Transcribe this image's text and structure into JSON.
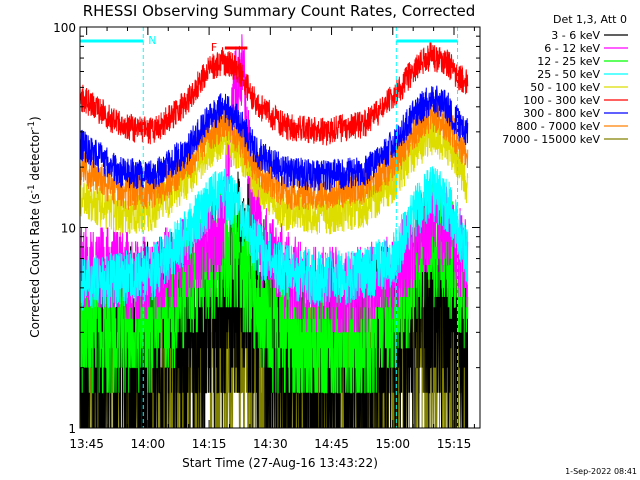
{
  "chart_data": {
    "type": "line",
    "title": "RHESSI Observing Summary Count Rates, Corrected",
    "xlabel": "Start Time (27-Aug-16 13:43:22)",
    "ylabel_main": "Corrected Count Rate (s",
    "ylabel_sup1": "-1",
    "ylabel_mid": " detector",
    "ylabel_sup2": "-1",
    "ylabel_end": ")",
    "y_scale": "log",
    "ylim": [
      1,
      100
    ],
    "xlim_minutes": [
      0,
      98
    ],
    "x_ticks": [
      {
        "label": "13:45",
        "minute": 1.63
      },
      {
        "label": "14:00",
        "minute": 16.63
      },
      {
        "label": "14:15",
        "minute": 31.63
      },
      {
        "label": "14:30",
        "minute": 46.63
      },
      {
        "label": "14:45",
        "minute": 61.63
      },
      {
        "label": "15:00",
        "minute": 76.63
      },
      {
        "label": "15:15",
        "minute": 91.63
      }
    ],
    "y_ticks": [
      {
        "label": "1",
        "value": 1
      },
      {
        "label": "10",
        "value": 10
      },
      {
        "label": "100",
        "value": 100
      }
    ],
    "legend_title": "Det 1,3, Att 0",
    "legend_placement": "right",
    "night_intervals_minutes": [
      [
        0,
        15.5
      ],
      [
        77.5,
        92.5
      ]
    ],
    "night_marker": "N",
    "flare_marker": "F",
    "flare_interval_minutes": [
      35.5,
      41.0
    ],
    "timestamp": "1-Sep-2022 08:41",
    "series": [
      {
        "name": "3 - 6 keV",
        "color": "#000000",
        "values_minutes": [
          0,
          12,
          25,
          34,
          40,
          44,
          49,
          57,
          66,
          74,
          79,
          84,
          90,
          94
        ],
        "values": [
          1.8,
          2.3,
          3.0,
          4.0,
          6.0,
          3.5,
          2.0,
          1.5,
          1.8,
          2.2,
          3.0,
          4.3,
          3.6,
          2.6
        ]
      },
      {
        "name": "6 - 12 keV",
        "color": "#ff00ff",
        "values_minutes": [
          0,
          10,
          18,
          26,
          31,
          35,
          38,
          40,
          42,
          45,
          52,
          60,
          70,
          77,
          82,
          86,
          90,
          93,
          95
        ],
        "values": [
          6.5,
          6.0,
          5.5,
          7.0,
          8.5,
          10.0,
          50.0,
          60.0,
          15.0,
          8.0,
          5.5,
          4.8,
          5.0,
          6.0,
          8.0,
          10.5,
          9.5,
          7.5,
          6.5
        ]
      },
      {
        "name": "12 - 25 keV",
        "color": "#00ff00",
        "values_minutes": [
          0,
          10,
          18,
          26,
          31,
          35,
          39,
          43,
          50,
          60,
          70,
          77,
          82,
          86,
          90,
          93,
          95
        ],
        "values": [
          3.2,
          3.0,
          3.4,
          5.0,
          7.0,
          8.0,
          7.0,
          4.5,
          3.0,
          2.7,
          2.8,
          3.8,
          6.5,
          9.0,
          8.0,
          5.5,
          4.5
        ]
      },
      {
        "name": "25 - 50 keV",
        "color": "#00ffff",
        "values_minutes": [
          0,
          10,
          18,
          26,
          31,
          35,
          39,
          43,
          50,
          60,
          70,
          77,
          82,
          86,
          90,
          93,
          95
        ],
        "values": [
          5.3,
          5.5,
          6.0,
          9.0,
          13.0,
          15.0,
          12.0,
          8.0,
          6.0,
          5.5,
          5.8,
          7.0,
          12.0,
          15.0,
          13.0,
          9.0,
          7.0
        ]
      },
      {
        "name": "50 - 100 keV",
        "color": "#dddd00",
        "values_minutes": [
          0,
          10,
          18,
          26,
          31,
          35,
          39,
          43,
          50,
          60,
          70,
          77,
          82,
          86,
          90,
          93,
          95
        ],
        "values": [
          14.0,
          11.5,
          12.0,
          17.0,
          24.0,
          28.0,
          24.0,
          17.0,
          12.0,
          11.5,
          12.5,
          17.0,
          24.0,
          29.0,
          26.0,
          20.0,
          16.0
        ]
      },
      {
        "name": "100 - 300 keV",
        "color": "#ff0000",
        "values_minutes": [
          0,
          10,
          18,
          26,
          31,
          35,
          39,
          43,
          50,
          60,
          70,
          77,
          82,
          86,
          90,
          93,
          95
        ],
        "values": [
          45.0,
          32.0,
          30.0,
          42.0,
          60.0,
          68.0,
          60.0,
          42.0,
          32.0,
          30.0,
          33.0,
          45.0,
          62.0,
          72.0,
          66.0,
          56.0,
          52.0
        ]
      },
      {
        "name": "300 - 800 keV",
        "color": "#0000ff",
        "values_minutes": [
          0,
          10,
          18,
          26,
          31,
          35,
          39,
          43,
          50,
          60,
          70,
          77,
          82,
          86,
          90,
          93,
          95
        ],
        "values": [
          26.0,
          19.0,
          18.0,
          24.0,
          34.0,
          40.0,
          34.0,
          24.0,
          19.0,
          18.0,
          19.0,
          26.0,
          37.0,
          44.0,
          40.0,
          32.0,
          30.0
        ]
      },
      {
        "name": "800 - 7000 keV",
        "color": "#ff8000",
        "values_minutes": [
          0,
          10,
          18,
          26,
          31,
          35,
          39,
          43,
          50,
          60,
          70,
          77,
          82,
          86,
          90,
          93,
          95
        ],
        "values": [
          20.0,
          15.0,
          15.0,
          20.0,
          28.0,
          33.0,
          28.0,
          20.0,
          15.0,
          15.0,
          16.0,
          21.0,
          30.0,
          37.0,
          33.0,
          26.0,
          23.0
        ]
      },
      {
        "name": "7000 - 15000 keV",
        "color": "#808000",
        "values_minutes": [
          0,
          12,
          25,
          34,
          40,
          44,
          49,
          57,
          66,
          74,
          79,
          84,
          90,
          94
        ],
        "values": [
          1.5,
          1.4,
          1.6,
          2.0,
          2.2,
          1.8,
          1.5,
          1.4,
          1.5,
          1.7,
          2.5,
          3.4,
          3.0,
          2.3
        ]
      }
    ]
  }
}
